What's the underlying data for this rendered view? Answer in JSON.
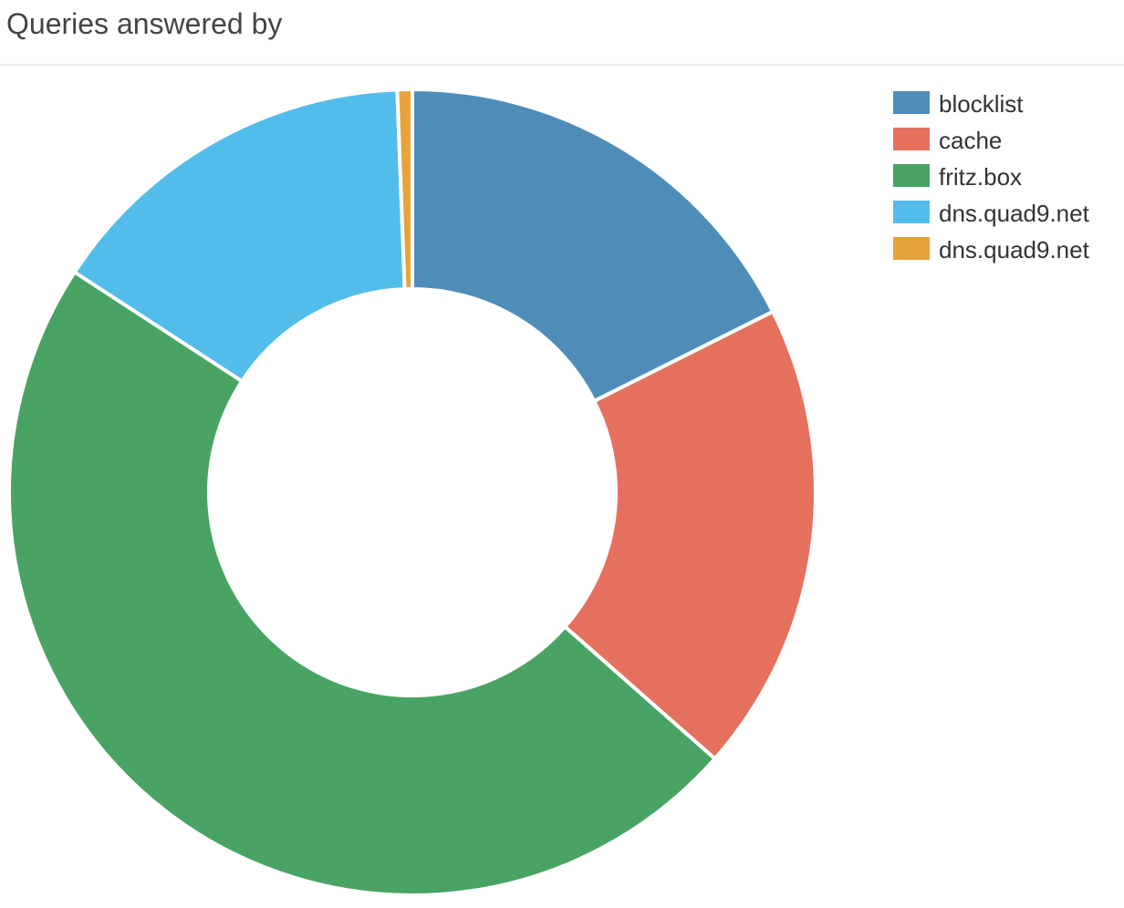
{
  "panel": {
    "title": "Queries answered by"
  },
  "chart_data": {
    "type": "pie",
    "title": "Queries answered by",
    "donut": true,
    "legend_position": "top-right",
    "slices": [
      {
        "label": "blocklist",
        "value": 17.6,
        "color": "#4f8db9"
      },
      {
        "label": "cache",
        "value": 18.9,
        "color": "#e6705e"
      },
      {
        "label": "fritz.box",
        "value": 47.7,
        "color": "#48a364"
      },
      {
        "label": "dns.quad9.net",
        "value": 15.2,
        "color": "#52bdea"
      },
      {
        "label": "dns.quad9.net",
        "value": 0.6,
        "color": "#e8a23a"
      }
    ]
  }
}
